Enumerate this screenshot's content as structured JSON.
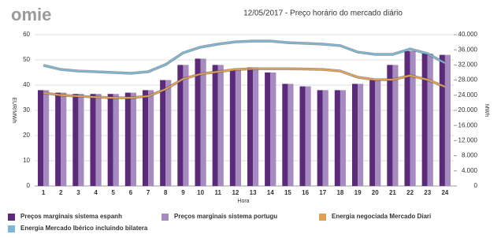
{
  "logo": "omie",
  "chart_data": {
    "type": "bar-line",
    "title": "12/05/2017 - Preço horário do mercado diário",
    "x_label": "Hora",
    "y_label": "EUR/MWh",
    "y2_label": "MWh",
    "categories": [
      "1",
      "2",
      "3",
      "4",
      "5",
      "6",
      "7",
      "8",
      "9",
      "10",
      "11",
      "12",
      "13",
      "14",
      "15",
      "16",
      "17",
      "18",
      "19",
      "20",
      "21",
      "22",
      "23",
      "24"
    ],
    "series": [
      {
        "name": "Preços marginais sistema espanh",
        "color": "#5b2a7a",
        "kind": "bar",
        "values": [
          38,
          37,
          36.5,
          36.5,
          36.5,
          37,
          38,
          42,
          48,
          50.5,
          48,
          46,
          47,
          45,
          40.5,
          39.5,
          38,
          38,
          40.5,
          42,
          48,
          53.5,
          52.5,
          52
        ]
      },
      {
        "name": "Preços marginais sistema portugu",
        "color": "#a58bbf",
        "kind": "bar",
        "values": [
          38,
          37,
          36.5,
          36.5,
          36.5,
          37,
          38,
          42,
          48,
          50.5,
          48,
          46,
          47,
          45,
          40.5,
          39.5,
          38,
          38,
          40.5,
          42,
          48,
          53.5,
          52.5,
          52
        ]
      },
      {
        "name": "Energia negociada Mercado Diari",
        "color": "#e0a050",
        "kind": "line",
        "axis": "y2",
        "values": [
          24600,
          24000,
          23750,
          23500,
          23300,
          23300,
          23750,
          25600,
          28300,
          29600,
          30200,
          30800,
          31000,
          31000,
          31000,
          30900,
          30800,
          30400,
          28750,
          28100,
          28100,
          29200,
          28100,
          26250
        ]
      },
      {
        "name": "Energia Mercado Ibérico incluindo bilatera",
        "color": "#7ab8d6",
        "kind": "line",
        "axis": "y2",
        "values": [
          31900,
          30800,
          30400,
          30200,
          30000,
          29800,
          30200,
          32100,
          35200,
          36700,
          37500,
          38100,
          38300,
          38300,
          37900,
          37700,
          37500,
          37100,
          35400,
          34800,
          34800,
          36200,
          35000,
          32500
        ]
      }
    ],
    "ylim": [
      0,
      60
    ],
    "yticks": [
      0,
      10,
      20,
      30,
      40,
      50,
      60
    ],
    "y2lim": [
      0,
      40000
    ],
    "y2ticks": [
      0,
      {
        "value": 4000,
        "label": "4.000"
      },
      {
        "value": 8000,
        "label": "8.000"
      },
      {
        "value": 12000,
        "label": "12.000"
      },
      {
        "value": 16000,
        "label": "16.000"
      },
      {
        "value": 20000,
        "label": "20.000"
      },
      {
        "value": 24000,
        "label": "24.000"
      },
      {
        "value": 28000,
        "label": "28.000"
      },
      {
        "value": 32000,
        "label": "32.000"
      },
      {
        "value": 36000,
        "label": "36.000"
      },
      {
        "value": 40000,
        "label": "40.000"
      }
    ],
    "grid": true
  }
}
